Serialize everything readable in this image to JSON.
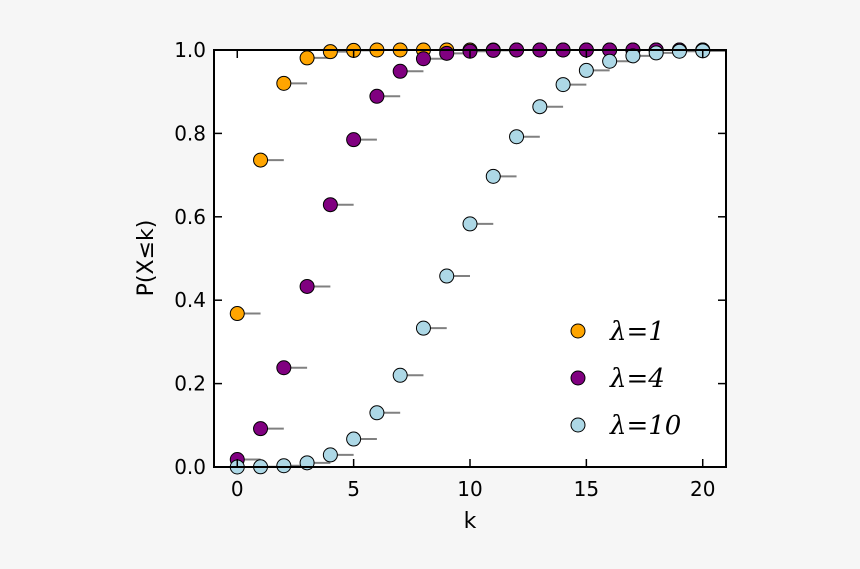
{
  "colors": {
    "background": "#f6f6f6",
    "plot_background": "#ffffff",
    "step_line": "#808080"
  },
  "chart_data": {
    "type": "scatter",
    "title": "",
    "xlabel": "k",
    "ylabel": "P(X≤k)",
    "xlim": [
      -1,
      21
    ],
    "ylim": [
      0,
      1
    ],
    "xticks": [
      0,
      5,
      10,
      15,
      20
    ],
    "xtick_labels": [
      "0",
      "5",
      "10",
      "15",
      "20"
    ],
    "yticks": [
      0.0,
      0.2,
      0.4,
      0.6,
      0.8,
      1.0
    ],
    "ytick_labels": [
      "0.0",
      "0.2",
      "0.4",
      "0.6",
      "0.8",
      "1.0"
    ],
    "grid": false,
    "legend_position": "bottom-right",
    "series": [
      {
        "name": "λ=1",
        "color": "#ffa500",
        "x": [
          0,
          1,
          2,
          3,
          4,
          5,
          6,
          7,
          8,
          9,
          10,
          11,
          12,
          13,
          14,
          15,
          16,
          17,
          18,
          19,
          20
        ],
        "y": [
          0.368,
          0.736,
          0.92,
          0.981,
          0.996,
          0.999,
          1.0,
          1.0,
          1.0,
          1.0,
          1.0,
          1.0,
          1.0,
          1.0,
          1.0,
          1.0,
          1.0,
          1.0,
          1.0,
          1.0,
          1.0
        ]
      },
      {
        "name": "λ=4",
        "color": "#800080",
        "x": [
          0,
          1,
          2,
          3,
          4,
          5,
          6,
          7,
          8,
          9,
          10,
          11,
          12,
          13,
          14,
          15,
          16,
          17,
          18,
          19,
          20
        ],
        "y": [
          0.018,
          0.092,
          0.238,
          0.433,
          0.629,
          0.785,
          0.889,
          0.949,
          0.979,
          0.992,
          0.997,
          0.999,
          1.0,
          1.0,
          1.0,
          1.0,
          1.0,
          1.0,
          1.0,
          1.0,
          1.0
        ]
      },
      {
        "name": "λ=10",
        "color": "#add8e6",
        "x": [
          0,
          1,
          2,
          3,
          4,
          5,
          6,
          7,
          8,
          9,
          10,
          11,
          12,
          13,
          14,
          15,
          16,
          17,
          18,
          19,
          20
        ],
        "y": [
          0.0,
          0.0005,
          0.003,
          0.01,
          0.029,
          0.067,
          0.13,
          0.22,
          0.333,
          0.458,
          0.583,
          0.697,
          0.792,
          0.864,
          0.917,
          0.951,
          0.973,
          0.986,
          0.993,
          0.997,
          0.998
        ]
      }
    ]
  }
}
